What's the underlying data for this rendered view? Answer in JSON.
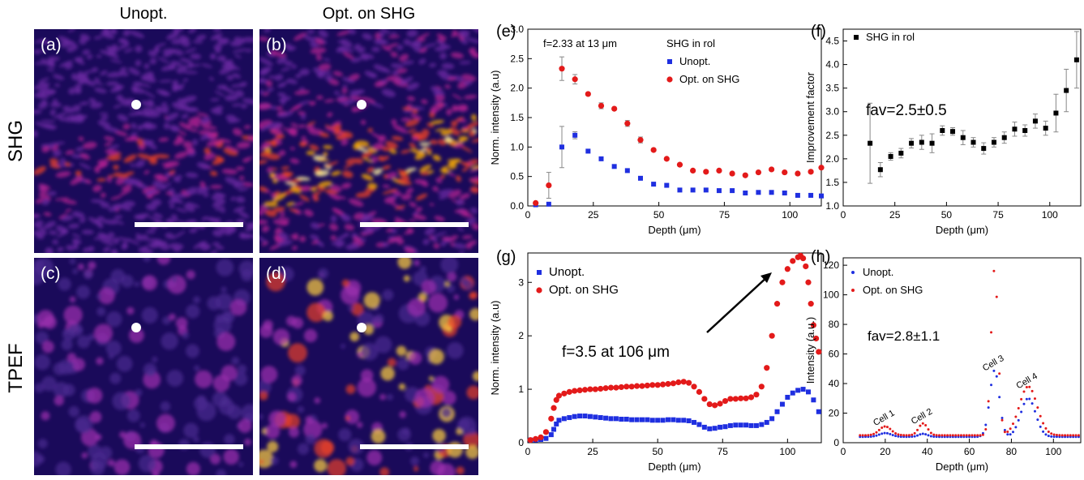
{
  "columns": {
    "unopt": "Unopt.",
    "opt": "Opt. on SHG"
  },
  "rows": {
    "shg": "SHG",
    "tpef": "TPEF"
  },
  "image_panels": [
    {
      "letter": "(a)",
      "type": "shg",
      "intensity": 0.55
    },
    {
      "letter": "(b)",
      "type": "shg",
      "intensity": 1.0
    },
    {
      "letter": "(c)",
      "type": "tpef",
      "intensity": 0.5
    },
    {
      "letter": "(d)",
      "type": "tpef",
      "intensity": 1.0
    }
  ],
  "colors": {
    "blue": "#1f2fe0",
    "red": "#e31a1a",
    "black": "#000000",
    "colormap_bg": "#1a0a5a"
  },
  "chart_data": [
    {
      "panel": "(e)",
      "type": "scatter",
      "xlabel": "Depth (μm)",
      "ylabel": "Norm. intensity (a.u)",
      "xlim": [
        0,
        112
      ],
      "ylim": [
        0,
        3.0
      ],
      "xticks": [
        0,
        25,
        50,
        75,
        100
      ],
      "yticks": [
        0.0,
        0.5,
        1.0,
        1.5,
        2.0,
        2.5,
        3.0
      ],
      "annotation": "f=2.33 at 13 μm",
      "legend_title": "SHG in rol",
      "series": [
        {
          "name": "Unopt.",
          "color": "#1f2fe0",
          "marker": "square",
          "x": [
            3,
            8,
            13,
            18,
            23,
            28,
            33,
            38,
            43,
            48,
            53,
            58,
            63,
            68,
            73,
            78,
            83,
            88,
            93,
            98,
            103,
            108,
            112
          ],
          "y": [
            0.02,
            0.03,
            1.0,
            1.2,
            0.93,
            0.8,
            0.67,
            0.6,
            0.47,
            0.37,
            0.35,
            0.27,
            0.27,
            0.27,
            0.26,
            0.26,
            0.22,
            0.23,
            0.23,
            0.22,
            0.18,
            0.18,
            0.17
          ],
          "err": [
            0,
            0,
            0.35,
            0.06,
            0,
            0,
            0,
            0,
            0,
            0,
            0,
            0,
            0,
            0,
            0,
            0,
            0,
            0,
            0,
            0,
            0,
            0,
            0
          ]
        },
        {
          "name": "Opt. on SHG",
          "color": "#e31a1a",
          "marker": "circle",
          "x": [
            3,
            8,
            13,
            18,
            23,
            28,
            33,
            38,
            43,
            48,
            53,
            58,
            63,
            68,
            73,
            78,
            83,
            88,
            93,
            98,
            103,
            108,
            112
          ],
          "y": [
            0.05,
            0.35,
            2.33,
            2.15,
            1.9,
            1.7,
            1.65,
            1.4,
            1.12,
            0.95,
            0.8,
            0.7,
            0.6,
            0.58,
            0.6,
            0.55,
            0.52,
            0.57,
            0.62,
            0.57,
            0.55,
            0.58,
            0.65
          ],
          "err": [
            0,
            0.22,
            0.2,
            0.08,
            0,
            0.05,
            0,
            0.05,
            0.05,
            0,
            0,
            0,
            0,
            0,
            0,
            0,
            0,
            0,
            0,
            0,
            0,
            0,
            0
          ]
        }
      ]
    },
    {
      "panel": "(f)",
      "type": "scatter",
      "xlabel": "Depth (μm)",
      "ylabel": "Improvement factor",
      "xlim": [
        0,
        115
      ],
      "ylim": [
        1.0,
        4.75
      ],
      "xticks": [
        0,
        25,
        50,
        75,
        100
      ],
      "yticks": [
        1.0,
        1.5,
        2.0,
        2.5,
        3.0,
        3.5,
        4.0,
        4.5
      ],
      "annotation": "fav=2.5±0.5",
      "series": [
        {
          "name": "SHG in rol",
          "color": "#000000",
          "marker": "square",
          "x": [
            13,
            18,
            23,
            28,
            33,
            38,
            43,
            48,
            53,
            58,
            63,
            68,
            73,
            78,
            83,
            88,
            93,
            98,
            103,
            108,
            113
          ],
          "y": [
            2.33,
            1.77,
            2.05,
            2.12,
            2.33,
            2.35,
            2.33,
            2.6,
            2.58,
            2.45,
            2.35,
            2.22,
            2.35,
            2.45,
            2.63,
            2.6,
            2.8,
            2.65,
            2.97,
            3.45,
            4.1
          ],
          "err": [
            0.85,
            0.15,
            0.08,
            0.1,
            0.1,
            0.15,
            0.2,
            0.1,
            0.08,
            0.15,
            0.1,
            0.12,
            0.1,
            0.12,
            0.15,
            0.12,
            0.15,
            0.15,
            0.4,
            0.45,
            0.6
          ]
        }
      ]
    },
    {
      "panel": "(g)",
      "type": "scatter",
      "xlabel": "Depth (μm)",
      "ylabel": "Norm. intensity (a.u)",
      "xlim": [
        0,
        113
      ],
      "ylim": [
        0,
        3.55
      ],
      "xticks": [
        0,
        25,
        50,
        75,
        100
      ],
      "yticks": [
        0,
        1,
        2,
        3
      ],
      "annotation": "f=3.5 at 106 μm",
      "series": [
        {
          "name": "Unopt.",
          "color": "#1f2fe0",
          "marker": "square",
          "x": [
            1,
            3,
            5,
            7,
            9,
            10,
            11,
            12,
            14,
            16,
            18,
            20,
            22,
            24,
            26,
            28,
            30,
            32,
            34,
            36,
            38,
            40,
            42,
            44,
            46,
            48,
            50,
            52,
            54,
            56,
            58,
            60,
            62,
            64,
            66,
            68,
            70,
            72,
            74,
            76,
            78,
            80,
            82,
            84,
            86,
            88,
            90,
            92,
            94,
            96,
            98,
            100,
            102,
            104,
            106,
            108,
            110,
            112
          ],
          "y": [
            0.05,
            0.05,
            0.06,
            0.08,
            0.15,
            0.25,
            0.35,
            0.42,
            0.45,
            0.47,
            0.49,
            0.5,
            0.5,
            0.49,
            0.48,
            0.47,
            0.46,
            0.45,
            0.45,
            0.44,
            0.44,
            0.43,
            0.43,
            0.43,
            0.43,
            0.42,
            0.42,
            0.42,
            0.43,
            0.43,
            0.42,
            0.42,
            0.41,
            0.38,
            0.34,
            0.29,
            0.26,
            0.27,
            0.29,
            0.3,
            0.32,
            0.33,
            0.33,
            0.33,
            0.32,
            0.32,
            0.34,
            0.38,
            0.45,
            0.58,
            0.72,
            0.85,
            0.93,
            0.98,
            1.0,
            0.95,
            0.8,
            0.58
          ]
        },
        {
          "name": "Opt. on SHG",
          "color": "#e31a1a",
          "marker": "circle",
          "x": [
            1,
            3,
            5,
            7,
            9,
            10,
            11,
            12,
            14,
            16,
            18,
            20,
            22,
            24,
            26,
            28,
            30,
            32,
            34,
            36,
            38,
            40,
            42,
            44,
            46,
            48,
            50,
            52,
            54,
            56,
            58,
            60,
            62,
            64,
            66,
            68,
            70,
            72,
            74,
            76,
            78,
            80,
            82,
            84,
            86,
            88,
            90,
            92,
            94,
            96,
            98,
            100,
            102,
            104,
            105,
            106,
            107,
            108,
            109,
            110,
            111,
            112
          ],
          "y": [
            0.05,
            0.07,
            0.1,
            0.2,
            0.45,
            0.65,
            0.8,
            0.88,
            0.92,
            0.95,
            0.97,
            0.98,
            0.99,
            1.0,
            1.0,
            1.01,
            1.02,
            1.03,
            1.03,
            1.04,
            1.05,
            1.05,
            1.06,
            1.06,
            1.07,
            1.08,
            1.08,
            1.09,
            1.1,
            1.11,
            1.13,
            1.14,
            1.12,
            1.05,
            0.95,
            0.82,
            0.72,
            0.7,
            0.73,
            0.78,
            0.82,
            0.82,
            0.83,
            0.83,
            0.85,
            0.9,
            1.05,
            1.4,
            2.0,
            2.6,
            3.0,
            3.25,
            3.4,
            3.47,
            3.5,
            3.45,
            3.3,
            3.0,
            2.6,
            2.2,
            1.95,
            1.7
          ]
        }
      ]
    },
    {
      "panel": "(h)",
      "type": "scatter",
      "xlabel": "Depth (μm)",
      "ylabel": "Intensity (a.u.)",
      "xlim": [
        0,
        113
      ],
      "ylim": [
        0,
        125
      ],
      "xticks": [
        0,
        20,
        40,
        60,
        80,
        100
      ],
      "yticks": [
        0,
        20,
        40,
        60,
        80,
        100,
        120
      ],
      "annotation": "fav=2.8±1.1",
      "cells": [
        {
          "label": "Cell 1",
          "x": 20,
          "y": 13
        },
        {
          "label": "Cell 2",
          "x": 38,
          "y": 14
        },
        {
          "label": "Cell 3",
          "x": 72,
          "y": 50
        },
        {
          "label": "Cell 4",
          "x": 88,
          "y": 38
        }
      ],
      "series": [
        {
          "name": "Unopt.",
          "color": "#1f2fe0",
          "marker": "dot",
          "peaks": [
            [
              20,
              2.5,
              4
            ],
            [
              38,
              2.0,
              3
            ],
            [
              72,
              45,
              3.2
            ],
            [
              88,
              26,
              5
            ]
          ],
          "baseline": 4
        },
        {
          "name": "Opt. on SHG",
          "color": "#e31a1a",
          "marker": "dot",
          "peaks": [
            [
              20,
              6,
              4
            ],
            [
              38,
              8,
              3
            ],
            [
              72,
              113,
              2.3
            ],
            [
              88,
              33,
              6
            ]
          ],
          "baseline": 5
        }
      ]
    }
  ]
}
